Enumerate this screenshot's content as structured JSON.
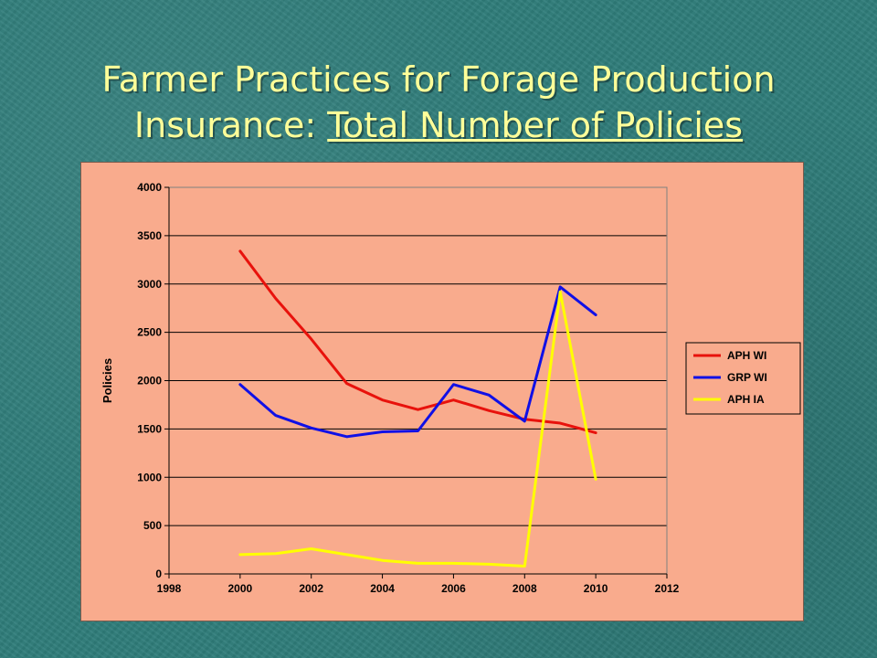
{
  "title": {
    "line1": "Farmer Practices for Forage Production",
    "line2_plain": "Insurance: ",
    "line2_underlined": "Total Number of Policies"
  },
  "colors": {
    "title": "#ffff99",
    "chart_background": "#f9ab8d",
    "plot_border": "#808080"
  },
  "chart_data": {
    "type": "line",
    "title": "",
    "xlabel": "",
    "ylabel": "Policies",
    "xlim": [
      1998,
      2012
    ],
    "ylim": [
      0,
      4000
    ],
    "xticks": [
      1998,
      2000,
      2002,
      2004,
      2006,
      2008,
      2010,
      2012
    ],
    "yticks": [
      0,
      500,
      1000,
      1500,
      2000,
      2500,
      3000,
      3500,
      4000
    ],
    "grid": "horizontal",
    "legend_position": "right",
    "x": [
      2000,
      2001,
      2002,
      2003,
      2004,
      2005,
      2006,
      2007,
      2008,
      2009,
      2010
    ],
    "series": [
      {
        "name": "APH WI",
        "color": "#e8120c",
        "values": [
          3340,
          2850,
          2430,
          1970,
          1800,
          1700,
          1800,
          1690,
          1600,
          1560,
          1460
        ]
      },
      {
        "name": "GRP WI",
        "color": "#1010e6",
        "values": [
          1960,
          1640,
          1510,
          1420,
          1470,
          1480,
          1960,
          1850,
          1580,
          2970,
          2680
        ]
      },
      {
        "name": "APH IA",
        "color": "#ffff00",
        "values": [
          200,
          210,
          260,
          200,
          140,
          110,
          110,
          100,
          80,
          2920,
          980
        ]
      }
    ]
  }
}
